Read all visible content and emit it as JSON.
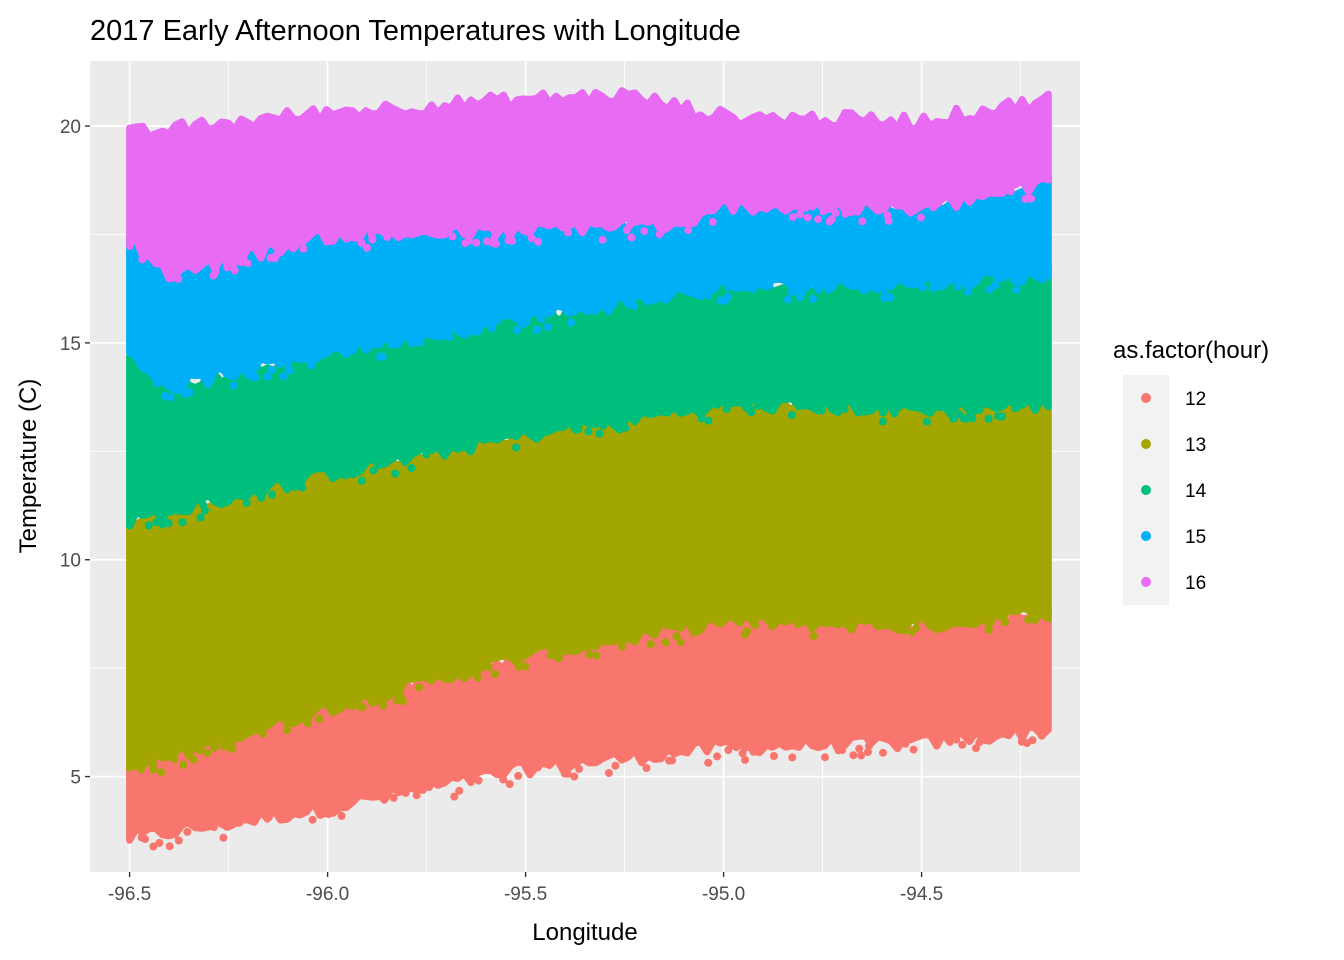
{
  "chart_data": {
    "type": "scatter",
    "title": "2017 Early Afternoon Temperatures with Longitude",
    "xlabel": "Longitude",
    "ylabel": "Temperature (C)",
    "xlim": [
      -96.6,
      -94.1
    ],
    "ylim": [
      2.8,
      21.5
    ],
    "x_ticks": [
      -96.5,
      -96.0,
      -95.5,
      -95.0,
      -94.5
    ],
    "x_tick_labels": [
      "-96.5",
      "-96.0",
      "-95.5",
      "-95.0",
      "-94.5"
    ],
    "y_ticks": [
      5,
      10,
      15,
      20
    ],
    "y_tick_labels": [
      "5",
      "10",
      "15",
      "20"
    ],
    "grid": true,
    "legend": {
      "title": "as.factor(hour)",
      "position": "right"
    },
    "series": [
      {
        "name": "12",
        "color": "#F8766D",
        "x_range": [
          -96.5,
          -94.18
        ],
        "bottom": [
          [
            -96.5,
            3.6
          ],
          [
            -96.0,
            4.3
          ],
          [
            -95.5,
            5.2
          ],
          [
            -95.0,
            5.7
          ],
          [
            -94.5,
            5.8
          ],
          [
            -94.18,
            6.1
          ]
        ],
        "top": [
          [
            -96.5,
            5.2
          ],
          [
            -96.0,
            6.6
          ],
          [
            -95.5,
            7.8
          ],
          [
            -95.0,
            8.6
          ],
          [
            -94.5,
            8.5
          ],
          [
            -94.18,
            8.8
          ]
        ]
      },
      {
        "name": "13",
        "color": "#A3A500",
        "x_range": [
          -96.5,
          -94.18
        ],
        "bottom": [
          [
            -96.5,
            5.2
          ],
          [
            -96.0,
            6.6
          ],
          [
            -95.5,
            7.8
          ],
          [
            -95.0,
            8.6
          ],
          [
            -94.5,
            8.5
          ],
          [
            -94.18,
            8.8
          ]
        ],
        "top": [
          [
            -96.5,
            10.9
          ],
          [
            -96.0,
            12.0
          ],
          [
            -95.5,
            12.9
          ],
          [
            -95.0,
            13.6
          ],
          [
            -94.5,
            13.5
          ],
          [
            -94.18,
            13.6
          ]
        ]
      },
      {
        "name": "14",
        "color": "#00BF7D",
        "x_range": [
          -96.5,
          -94.18
        ],
        "bottom": [
          [
            -96.5,
            10.9
          ],
          [
            -96.0,
            12.0
          ],
          [
            -95.5,
            12.9
          ],
          [
            -95.0,
            13.6
          ],
          [
            -94.5,
            13.5
          ],
          [
            -94.18,
            13.6
          ]
        ],
        "top": [
          [
            -96.5,
            14.8
          ],
          [
            -96.4,
            14.0
          ],
          [
            -96.0,
            14.8
          ],
          [
            -95.5,
            15.6
          ],
          [
            -95.0,
            16.3
          ],
          [
            -94.5,
            16.4
          ],
          [
            -94.18,
            16.6
          ]
        ]
      },
      {
        "name": "15",
        "color": "#00B0F6",
        "x_range": [
          -96.5,
          -94.18
        ],
        "bottom": [
          [
            -96.5,
            14.8
          ],
          [
            -96.4,
            14.0
          ],
          [
            -96.0,
            14.8
          ],
          [
            -95.5,
            15.6
          ],
          [
            -95.0,
            16.3
          ],
          [
            -94.5,
            16.4
          ],
          [
            -94.18,
            16.6
          ]
        ],
        "top": [
          [
            -96.5,
            17.4
          ],
          [
            -96.4,
            16.6
          ],
          [
            -96.0,
            17.5
          ],
          [
            -95.5,
            17.6
          ],
          [
            -95.2,
            17.8
          ],
          [
            -95.1,
            17.6
          ],
          [
            -95.0,
            18.2
          ],
          [
            -94.5,
            18.1
          ],
          [
            -94.18,
            18.7
          ]
        ]
      },
      {
        "name": "16",
        "color": "#E76BF3",
        "x_range": [
          -96.5,
          -94.18
        ],
        "bottom": [
          [
            -96.5,
            17.4
          ],
          [
            -96.4,
            16.6
          ],
          [
            -96.0,
            17.5
          ],
          [
            -95.5,
            17.6
          ],
          [
            -95.2,
            17.8
          ],
          [
            -95.1,
            17.6
          ],
          [
            -95.0,
            18.2
          ],
          [
            -94.5,
            18.1
          ],
          [
            -94.18,
            18.7
          ]
        ],
        "top": [
          [
            -96.5,
            19.8
          ],
          [
            -96.0,
            20.3
          ],
          [
            -95.5,
            20.6
          ],
          [
            -95.25,
            20.7
          ],
          [
            -95.0,
            20.2
          ],
          [
            -94.5,
            20.1
          ],
          [
            -94.18,
            20.6
          ]
        ]
      }
    ]
  }
}
